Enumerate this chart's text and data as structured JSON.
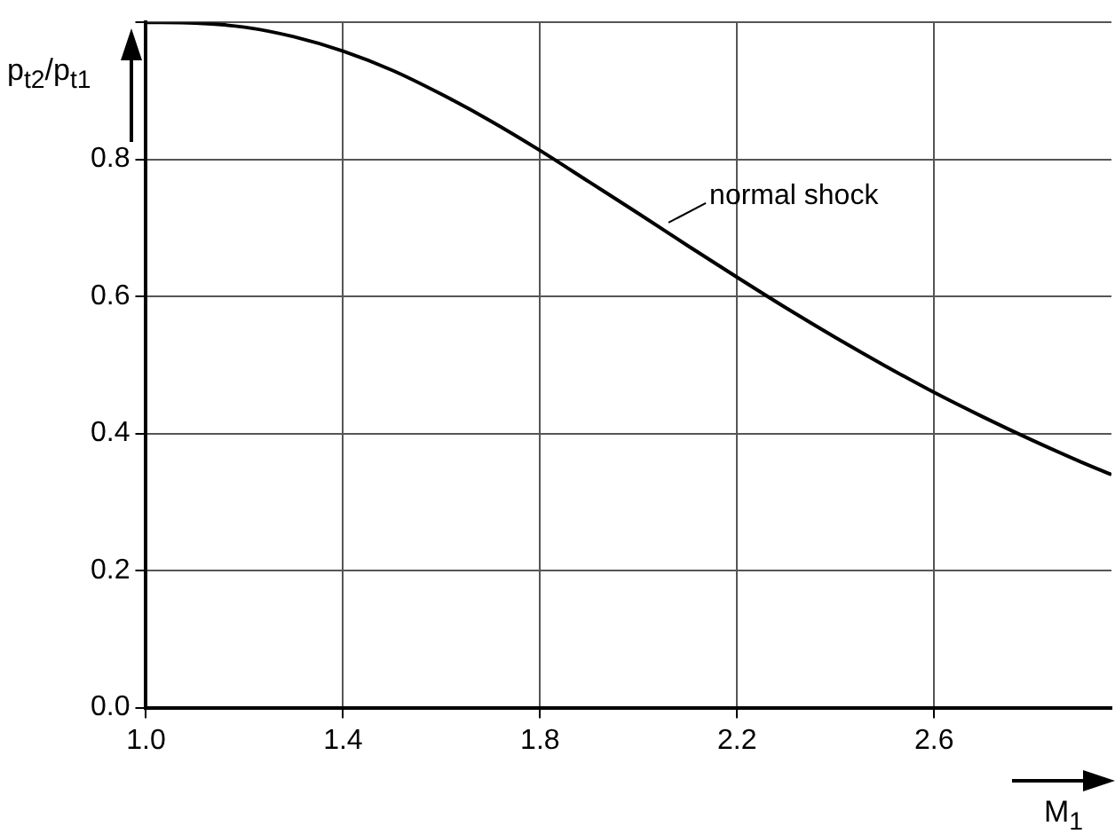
{
  "chart_data": {
    "type": "line",
    "xlabel": "M$_{1}$",
    "ylabel": "p$_{t2}$/p$_{t1}$",
    "x": [
      1.0,
      1.1,
      1.2,
      1.3,
      1.4,
      1.5,
      1.6,
      1.7,
      1.8,
      1.9,
      2.0,
      2.1,
      2.2,
      2.3,
      2.4,
      2.5,
      2.6,
      2.7,
      2.8,
      2.9,
      2.96
    ],
    "series": [
      {
        "color": "#000000",
        "values": [
          1.0,
          0.999,
          0.993,
          0.979,
          0.958,
          0.93,
          0.895,
          0.856,
          0.813,
          0.767,
          0.721,
          0.674,
          0.628,
          0.583,
          0.54,
          0.499,
          0.46,
          0.424,
          0.39,
          0.358,
          0.34
        ]
      }
    ],
    "xlim": [
      1.0,
      2.96
    ],
    "xticks": [
      {
        "value": 1,
        "label": "1.0"
      },
      1.4,
      1.8,
      2.2,
      2.6
    ],
    "ylim": [
      0,
      1
    ],
    "yticks": [
      {
        "value": 0,
        "label": "0.0"
      },
      0.2,
      0.4,
      0.6,
      0.8,
      {
        "value": 1,
        "label": null
      }
    ],
    "grid": true,
    "legend": false,
    "marker": "none",
    "line_style": "solid",
    "annotations": [
      {
        "text": "normal shock",
        "x": 2.05,
        "y": 0.7
      }
    ]
  }
}
